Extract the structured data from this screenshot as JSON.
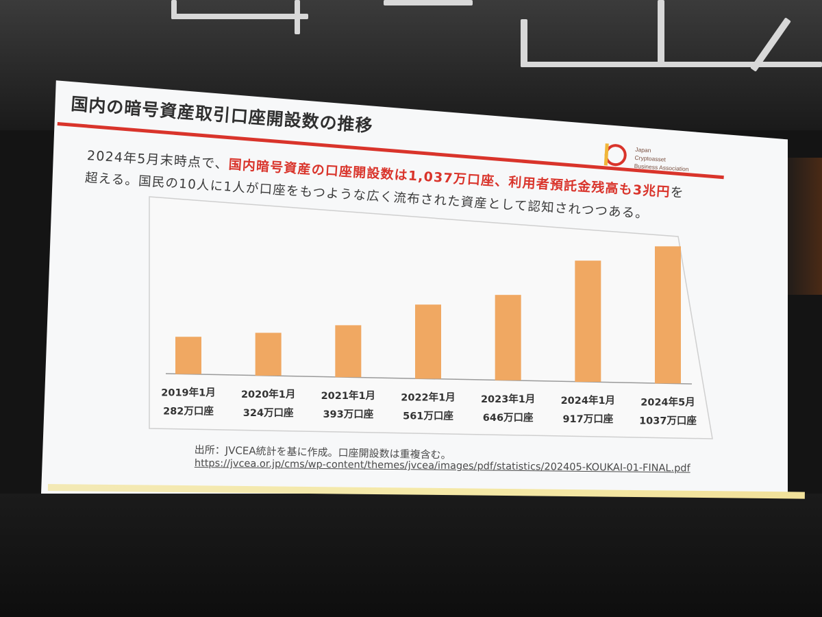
{
  "slide": {
    "title": "国内の暗号資産取引口座開設数の推移",
    "lead_line1_pre": "2024年5月末時点で、",
    "lead_line1_hl": "国内暗号資産の口座開設数は1,037万口座、利用者預託金残高も3兆円",
    "lead_line1_post": "を",
    "lead_line2": "超える。国民の10人に1人が口座をもつような広く流布された資産として認知されつつある。",
    "source_text": "出所：JVCEA統計を基に作成。口座開設数は重複含む。",
    "source_url": "https://jvcea.or.jp/cms/wp-content/themes/jvcea/images/pdf/statistics/202405-KOUKAI-01-FINAL.pdf"
  },
  "logo": {
    "line1": "Japan",
    "line2": "Cryptoasset",
    "line3": "Business Association"
  },
  "colors": {
    "accent_red": "#d9342b",
    "bar_orange": "#f0a862",
    "text_dark": "#3a3a3a"
  },
  "chart_data": {
    "type": "bar",
    "categories": [
      "2019年1月",
      "2020年1月",
      "2021年1月",
      "2022年1月",
      "2023年1月",
      "2024年1月",
      "2024年5月"
    ],
    "values": [
      282,
      324,
      393,
      561,
      646,
      917,
      1037
    ],
    "data_labels": [
      "282万口座",
      "324万口座",
      "393万口座",
      "561万口座",
      "646万口座",
      "917万口座",
      "1037万口座"
    ],
    "unit": "万口座",
    "grid": false
  }
}
